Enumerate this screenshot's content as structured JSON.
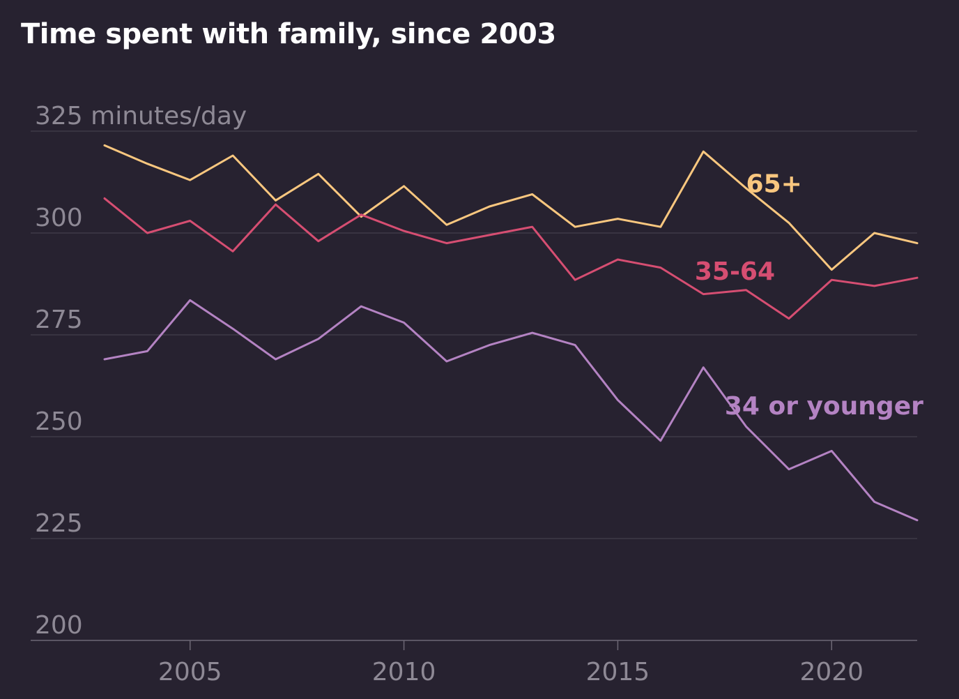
{
  "title": "Time spent with family, since 2003",
  "chart_data": {
    "type": "line",
    "title": "Time spent with family, since 2003",
    "xlabel": "",
    "ylabel": "minutes/day",
    "xlim": [
      2003,
      2022
    ],
    "ylim": [
      200,
      325
    ],
    "y_ticks": [
      {
        "value": 200,
        "label": "200"
      },
      {
        "value": 225,
        "label": "225"
      },
      {
        "value": 250,
        "label": "250"
      },
      {
        "value": 275,
        "label": "275"
      },
      {
        "value": 300,
        "label": "300"
      },
      {
        "value": 325,
        "label": "325 minutes/day"
      }
    ],
    "x_ticks": [
      {
        "value": 2005,
        "label": "2005"
      },
      {
        "value": 2010,
        "label": "2010"
      },
      {
        "value": 2015,
        "label": "2015"
      },
      {
        "value": 2020,
        "label": "2020"
      }
    ],
    "grid": true,
    "x": [
      2003,
      2004,
      2005,
      2006,
      2007,
      2008,
      2009,
      2010,
      2011,
      2012,
      2013,
      2014,
      2015,
      2016,
      2017,
      2018,
      2019,
      2020,
      2021,
      2022
    ],
    "series": [
      {
        "name": "65+",
        "color": "#f9c77f",
        "label_year": 2018,
        "label_value": 310,
        "values": [
          321.5,
          317,
          313,
          319,
          308,
          314.5,
          304,
          311.5,
          302,
          306.5,
          309.5,
          301.5,
          303.5,
          301.5,
          320,
          311,
          302.5,
          291,
          300,
          297.5
        ]
      },
      {
        "name": "35-64",
        "color": "#d64e72",
        "label_year": 2016.8,
        "label_value": 288.5,
        "values": [
          308.5,
          300,
          303,
          295.5,
          307,
          298,
          304.5,
          300.5,
          297.5,
          299.5,
          301.5,
          288.5,
          293.5,
          291.5,
          285,
          286,
          279,
          288.5,
          287,
          289
        ]
      },
      {
        "name": "34 or younger",
        "color": "#b483c3",
        "label_year": 2017.5,
        "label_value": 255.5,
        "values": [
          269,
          271,
          283.5,
          276.5,
          269,
          274,
          282,
          278,
          268.5,
          272.5,
          275.5,
          272.5,
          259,
          249,
          267,
          252.5,
          242,
          246.5,
          234,
          229.5
        ]
      }
    ]
  }
}
